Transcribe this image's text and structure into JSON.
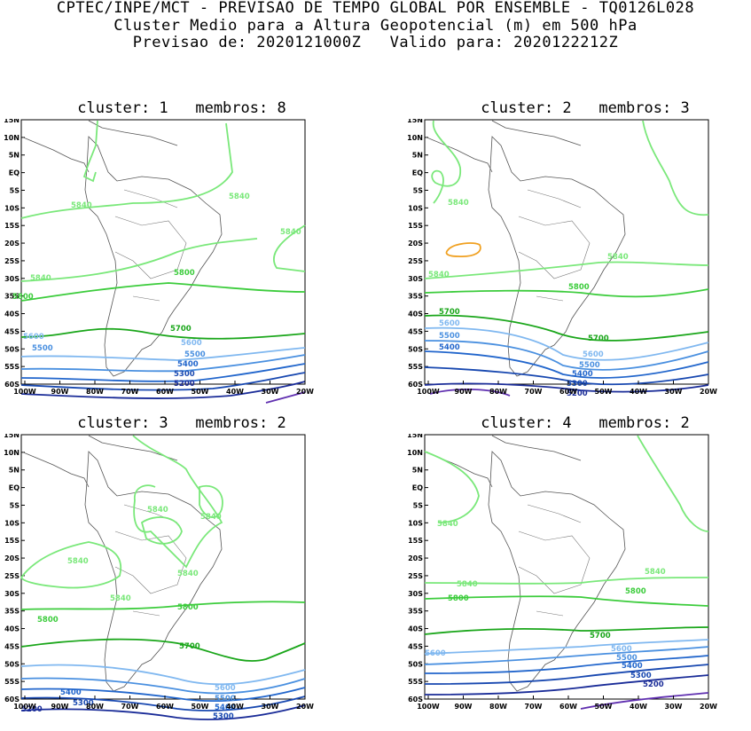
{
  "header": {
    "line1": "CPTEC/INPE/MCT - PREVISAO DE TEMPO GLOBAL POR ENSEMBLE - TQ0126L028",
    "line2": "Cluster Medio para a Altura Geopotencial (m) em 500 hPa",
    "line3": "Previsao de: 2020121000Z   Valido para: 2020122212Z"
  },
  "axes": {
    "lat_labels": [
      "15N",
      "10N",
      "5N",
      "EQ",
      "5S",
      "10S",
      "15S",
      "20S",
      "25S",
      "30S",
      "35S",
      "40S",
      "45S",
      "50S",
      "55S",
      "60S"
    ],
    "lon_labels": [
      "100W",
      "90W",
      "80W",
      "70W",
      "60W",
      "50W",
      "40W",
      "30W",
      "20W"
    ]
  },
  "colors": {
    "c5840": "#7ae87a",
    "c5800": "#3ccc3c",
    "c5700": "#1aa61a",
    "c5600": "#80b8f0",
    "c5500": "#4a90e0",
    "c5400": "#2266cc",
    "c5300": "#1848b0",
    "c5200": "#1a2c98",
    "c5100": "#6030b0",
    "c5900": "#f0a020"
  },
  "panels": [
    {
      "title": "cluster: 1   membros: 8",
      "labels": {
        "a": "5840",
        "b": "5840",
        "c": "5840",
        "d": "5840",
        "e": "5800",
        "f": "5800",
        "g": "5700",
        "h": "5600",
        "i": "5600",
        "j": "5500",
        "k": "5500",
        "l": "5400",
        "m": "5300",
        "n": "5200"
      }
    },
    {
      "title": "cluster: 2   membros: 3",
      "labels": {
        "a": "5840",
        "b": "5840",
        "c": "5840",
        "d": "5800",
        "e": "5700",
        "f": "5700",
        "g": "5600",
        "h": "5600",
        "i": "5500",
        "j": "5500",
        "k": "5400",
        "l": "5400",
        "m": "5300",
        "n": "5200"
      }
    },
    {
      "title": "cluster: 3   membros: 2",
      "labels": {
        "a": "5840",
        "b": "5840",
        "c": "5840",
        "d": "5840",
        "e": "5840",
        "f": "5800",
        "g": "5800",
        "h": "5700",
        "i": "5600",
        "j": "5500",
        "k": "5400",
        "l": "5400",
        "m": "5300",
        "n": "5300",
        "o": "5200"
      }
    },
    {
      "title": "cluster: 4   membros: 2",
      "labels": {
        "a": "5840",
        "b": "5840",
        "c": "5840",
        "d": "5800",
        "e": "5800",
        "f": "5700",
        "g": "5600",
        "h": "5600",
        "i": "5500",
        "j": "5400",
        "k": "5300",
        "l": "5200"
      }
    }
  ]
}
